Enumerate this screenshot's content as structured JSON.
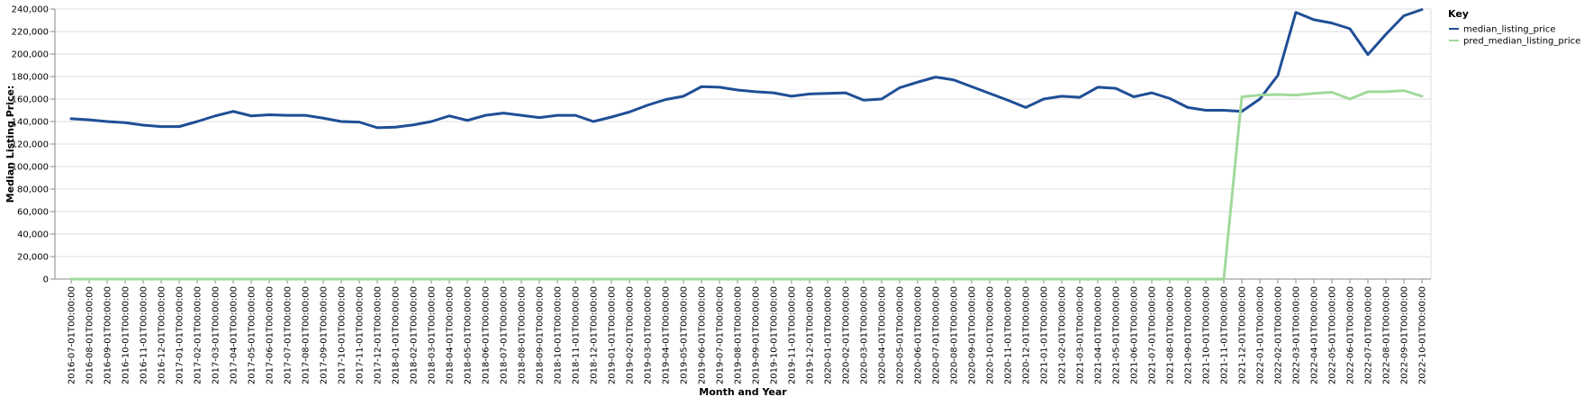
{
  "chart_data": {
    "type": "line",
    "xlabel": "Month and Year",
    "ylabel": "Median Listing Price:",
    "ylim": [
      0,
      240000
    ],
    "yticks": [
      0,
      20000,
      40000,
      60000,
      80000,
      100000,
      120000,
      140000,
      160000,
      180000,
      200000,
      220000,
      240000
    ],
    "grid": true,
    "legend": {
      "title": "Key",
      "position": "top-right"
    },
    "x": [
      "2016-07-01T00:00:00",
      "2016-08-01T00:00:00",
      "2016-09-01T00:00:00",
      "2016-10-01T00:00:00",
      "2016-11-01T00:00:00",
      "2016-12-01T00:00:00",
      "2017-01-01T00:00:00",
      "2017-02-01T00:00:00",
      "2017-03-01T00:00:00",
      "2017-04-01T00:00:00",
      "2017-05-01T00:00:00",
      "2017-06-01T00:00:00",
      "2017-07-01T00:00:00",
      "2017-08-01T00:00:00",
      "2017-09-01T00:00:00",
      "2017-10-01T00:00:00",
      "2017-11-01T00:00:00",
      "2017-12-01T00:00:00",
      "2018-01-01T00:00:00",
      "2018-02-01T00:00:00",
      "2018-03-01T00:00:00",
      "2018-04-01T00:00:00",
      "2018-05-01T00:00:00",
      "2018-06-01T00:00:00",
      "2018-07-01T00:00:00",
      "2018-08-01T00:00:00",
      "2018-09-01T00:00:00",
      "2018-10-01T00:00:00",
      "2018-11-01T00:00:00",
      "2018-12-01T00:00:00",
      "2019-01-01T00:00:00",
      "2019-02-01T00:00:00",
      "2019-03-01T00:00:00",
      "2019-04-01T00:00:00",
      "2019-05-01T00:00:00",
      "2019-06-01T00:00:00",
      "2019-07-01T00:00:00",
      "2019-08-01T00:00:00",
      "2019-09-01T00:00:00",
      "2019-10-01T00:00:00",
      "2019-11-01T00:00:00",
      "2019-12-01T00:00:00",
      "2020-01-01T00:00:00",
      "2020-02-01T00:00:00",
      "2020-03-01T00:00:00",
      "2020-04-01T00:00:00",
      "2020-05-01T00:00:00",
      "2020-06-01T00:00:00",
      "2020-07-01T00:00:00",
      "2020-08-01T00:00:00",
      "2020-09-01T00:00:00",
      "2020-10-01T00:00:00",
      "2020-11-01T00:00:00",
      "2020-12-01T00:00:00",
      "2021-01-01T00:00:00",
      "2021-02-01T00:00:00",
      "2021-03-01T00:00:00",
      "2021-04-01T00:00:00",
      "2021-05-01T00:00:00",
      "2021-06-01T00:00:00",
      "2021-07-01T00:00:00",
      "2021-08-01T00:00:00",
      "2021-09-01T00:00:00",
      "2021-10-01T00:00:00",
      "2021-11-01T00:00:00",
      "2021-12-01T00:00:00",
      "2022-01-01T00:00:00",
      "2022-02-01T00:00:00",
      "2022-03-01T00:00:00",
      "2022-04-01T00:00:00",
      "2022-05-01T00:00:00",
      "2022-06-01T00:00:00",
      "2022-07-01T00:00:00",
      "2022-08-01T00:00:00",
      "2022-09-01T00:00:00",
      "2022-10-01T00:00:00"
    ],
    "series": [
      {
        "name": "median_listing_price",
        "color": "#1f4e96",
        "values": [
          142500,
          141500,
          140000,
          139000,
          136800,
          135500,
          135500,
          140000,
          145000,
          149000,
          145000,
          146000,
          145500,
          145500,
          143000,
          140000,
          139500,
          134500,
          135000,
          137000,
          140000,
          145000,
          141000,
          145500,
          147500,
          145500,
          143500,
          145500,
          145500,
          140000,
          144000,
          148500,
          154500,
          159500,
          162500,
          171000,
          170500,
          168000,
          166500,
          165500,
          162500,
          164500,
          165000,
          165500,
          159000,
          160000,
          170000,
          175000,
          179500,
          177000,
          171000,
          165000,
          159000,
          152500,
          160000,
          162500,
          161500,
          170500,
          169500,
          162000,
          165500,
          160500,
          152500,
          150000,
          150000,
          149000,
          160000,
          181000,
          237000,
          230500,
          227500,
          222500,
          199500,
          217500,
          234000,
          239500
        ]
      },
      {
        "name": "pred_median_listing_price",
        "color": "#a1d99b",
        "values": [
          0,
          0,
          0,
          0,
          0,
          0,
          0,
          0,
          0,
          0,
          0,
          0,
          0,
          0,
          0,
          0,
          0,
          0,
          0,
          0,
          0,
          0,
          0,
          0,
          0,
          0,
          0,
          0,
          0,
          0,
          0,
          0,
          0,
          0,
          0,
          0,
          0,
          0,
          0,
          0,
          0,
          0,
          0,
          0,
          0,
          0,
          0,
          0,
          0,
          0,
          0,
          0,
          0,
          0,
          0,
          0,
          0,
          0,
          0,
          0,
          0,
          0,
          0,
          0,
          0,
          162000,
          163500,
          164000,
          163500,
          165000,
          166000,
          160000,
          166500,
          166500,
          167500,
          162500
        ]
      }
    ]
  }
}
